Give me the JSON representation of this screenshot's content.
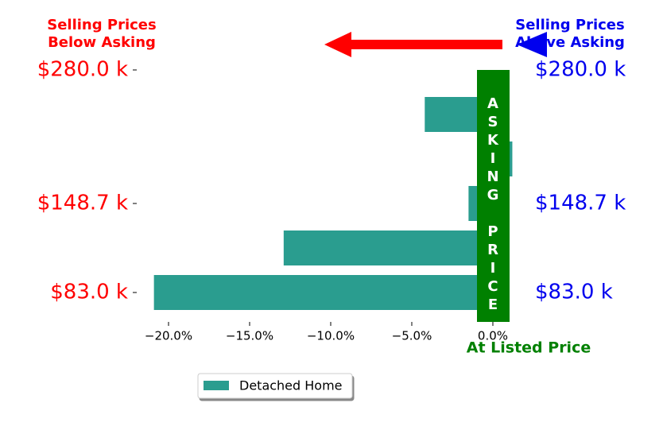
{
  "chart_data": {
    "type": "barh",
    "categories": [
      "$280.0 k",
      null,
      null,
      "$148.7 k",
      null,
      "$83.0 k"
    ],
    "values": [
      null,
      -4.2,
      1.2,
      -1.5,
      -12.9,
      -20.9
    ],
    "color": "#2a9d8f",
    "series_name": "Detached Home",
    "xlim": [
      -22,
      1.3
    ],
    "xticks": [
      {
        "value": -20,
        "label": "−20.0%"
      },
      {
        "value": -15,
        "label": "−15.0%"
      },
      {
        "value": -10,
        "label": "−10.0%"
      },
      {
        "value": -5,
        "label": "−5.0%"
      },
      {
        "value": 0,
        "label": "0.0%"
      }
    ],
    "left_label_color": "#ff0000",
    "right_label_color": "#0000ee",
    "annotations": {
      "below": [
        "Selling Prices",
        "Below Asking"
      ],
      "above": [
        "Selling Prices",
        "Above Asking"
      ],
      "asking": "ASKING PRICE",
      "listed": "At Listed Price"
    },
    "legend": "lower left"
  }
}
